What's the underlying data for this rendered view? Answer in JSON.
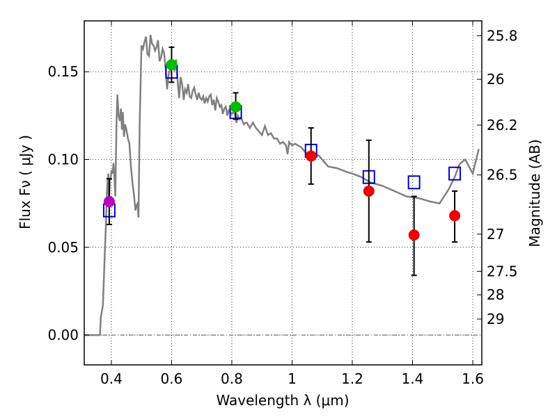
{
  "chart_data": {
    "type": "scatter",
    "xlabel": "Wavelength  λ (μm)",
    "ylabel": "Flux  Fν  ( μJy )",
    "ylabel_right": "Magnitude (AB)",
    "xlim": [
      0.31,
      1.63
    ],
    "ylim": [
      -0.017,
      0.179
    ],
    "x_ticks": [
      {
        "value": 0.4,
        "label": "0.4"
      },
      {
        "value": 0.6,
        "label": "0.6"
      },
      {
        "value": 0.8,
        "label": "0.8"
      },
      {
        "value": 1.0,
        "label": "1"
      },
      {
        "value": 1.2,
        "label": "1.2"
      },
      {
        "value": 1.4,
        "label": "1.4"
      },
      {
        "value": 1.6,
        "label": "1.6"
      }
    ],
    "y_ticks": [
      {
        "value": 0.0,
        "label": "0.00"
      },
      {
        "value": 0.05,
        "label": "0.05"
      },
      {
        "value": 0.1,
        "label": "0.10"
      },
      {
        "value": 0.15,
        "label": "0.15"
      }
    ],
    "mag_ticks": [
      {
        "flux": 0.1705,
        "label": "25.8"
      },
      {
        "flux": 0.1457,
        "label": "26"
      },
      {
        "flux": 0.1196,
        "label": "26.2"
      },
      {
        "flux": 0.0912,
        "label": "26.5"
      },
      {
        "flux": 0.0575,
        "label": "27"
      },
      {
        "flux": 0.0363,
        "label": "27.5"
      },
      {
        "flux": 0.0229,
        "label": "28"
      },
      {
        "flux": 0.0091,
        "label": "29"
      }
    ],
    "grid": true,
    "colors": {
      "model": "#808080",
      "model_points": "#0000cc",
      "errorbar": "#000000",
      "violet": "#bb00bb",
      "green": "#00bb00",
      "red": "#ee0000",
      "zero_line": "#555555"
    },
    "model_spectrum": {
      "x": [
        0.31,
        0.362,
        0.365,
        0.372,
        0.378,
        0.383,
        0.386,
        0.39,
        0.392,
        0.395,
        0.398,
        0.401,
        0.404,
        0.407,
        0.41,
        0.413,
        0.417,
        0.42,
        0.424,
        0.428,
        0.432,
        0.435,
        0.438,
        0.442,
        0.446,
        0.45,
        0.455,
        0.46,
        0.465,
        0.47,
        0.475,
        0.48,
        0.484,
        0.487,
        0.49,
        0.494,
        0.5,
        0.505,
        0.51,
        0.515,
        0.52,
        0.525,
        0.53,
        0.535,
        0.54,
        0.545,
        0.55,
        0.555,
        0.56,
        0.565,
        0.57,
        0.575,
        0.58,
        0.585,
        0.59,
        0.595,
        0.6,
        0.605,
        0.61,
        0.615,
        0.62,
        0.625,
        0.63,
        0.635,
        0.64,
        0.645,
        0.65,
        0.655,
        0.66,
        0.665,
        0.67,
        0.675,
        0.68,
        0.685,
        0.69,
        0.695,
        0.7,
        0.705,
        0.71,
        0.715,
        0.72,
        0.725,
        0.73,
        0.735,
        0.74,
        0.745,
        0.75,
        0.755,
        0.76,
        0.765,
        0.77,
        0.775,
        0.78,
        0.785,
        0.79,
        0.795,
        0.8,
        0.805,
        0.81,
        0.815,
        0.82,
        0.825,
        0.83,
        0.835,
        0.84,
        0.845,
        0.85,
        0.86,
        0.87,
        0.88,
        0.89,
        0.9,
        0.91,
        0.92,
        0.93,
        0.94,
        0.95,
        0.96,
        0.97,
        0.98,
        0.985,
        0.99,
        1.0,
        1.01,
        1.02,
        1.03,
        1.05,
        1.07,
        1.09,
        1.1,
        1.12,
        1.15,
        1.18,
        1.2,
        1.23,
        1.26,
        1.3,
        1.34,
        1.38,
        1.42,
        1.46,
        1.49,
        1.52,
        1.54,
        1.555,
        1.56,
        1.575,
        1.6,
        1.62
      ],
      "y": [
        0.0,
        0.0,
        0.01,
        0.017,
        0.045,
        0.068,
        0.085,
        0.092,
        0.075,
        0.088,
        0.09,
        0.094,
        0.092,
        0.098,
        0.09,
        0.079,
        0.12,
        0.137,
        0.125,
        0.122,
        0.129,
        0.117,
        0.127,
        0.113,
        0.12,
        0.117,
        0.112,
        0.109,
        0.096,
        0.087,
        0.08,
        0.071,
        0.074,
        0.075,
        0.067,
        0.12,
        0.165,
        0.163,
        0.167,
        0.17,
        0.16,
        0.159,
        0.171,
        0.166,
        0.165,
        0.162,
        0.164,
        0.168,
        0.156,
        0.158,
        0.163,
        0.161,
        0.152,
        0.14,
        0.148,
        0.152,
        0.155,
        0.153,
        0.151,
        0.157,
        0.145,
        0.135,
        0.147,
        0.143,
        0.134,
        0.14,
        0.138,
        0.143,
        0.136,
        0.135,
        0.139,
        0.141,
        0.137,
        0.134,
        0.138,
        0.135,
        0.134,
        0.136,
        0.132,
        0.135,
        0.133,
        0.136,
        0.137,
        0.131,
        0.134,
        0.128,
        0.135,
        0.133,
        0.13,
        0.131,
        0.126,
        0.129,
        0.13,
        0.125,
        0.128,
        0.127,
        0.126,
        0.127,
        0.126,
        0.121,
        0.125,
        0.123,
        0.124,
        0.122,
        0.12,
        0.121,
        0.121,
        0.118,
        0.121,
        0.118,
        0.116,
        0.114,
        0.119,
        0.114,
        0.115,
        0.112,
        0.112,
        0.109,
        0.11,
        0.108,
        0.103,
        0.11,
        0.108,
        0.109,
        0.108,
        0.107,
        0.103,
        0.104,
        0.102,
        0.1,
        0.096,
        0.095,
        0.093,
        0.092,
        0.09,
        0.087,
        0.085,
        0.082,
        0.079,
        0.078,
        0.076,
        0.075,
        0.083,
        0.09,
        0.097,
        0.098,
        0.1,
        0.092,
        0.106
      ]
    },
    "model_points": [
      {
        "x": 0.393,
        "y": 0.071
      },
      {
        "x": 0.6,
        "y": 0.15
      },
      {
        "x": 0.813,
        "y": 0.127
      },
      {
        "x": 1.063,
        "y": 0.105
      },
      {
        "x": 1.255,
        "y": 0.09
      },
      {
        "x": 1.405,
        "y": 0.087
      },
      {
        "x": 1.54,
        "y": 0.092
      }
    ],
    "observed": [
      {
        "x": 0.393,
        "y": 0.076,
        "ylo": 0.063,
        "yhi": 0.089,
        "color": "violet"
      },
      {
        "x": 0.6,
        "y": 0.154,
        "ylo": 0.144,
        "yhi": 0.164,
        "color": "green"
      },
      {
        "x": 0.813,
        "y": 0.13,
        "ylo": 0.123,
        "yhi": 0.138,
        "color": "green"
      },
      {
        "x": 1.063,
        "y": 0.102,
        "ylo": 0.086,
        "yhi": 0.118,
        "color": "red"
      },
      {
        "x": 1.255,
        "y": 0.082,
        "ylo": 0.053,
        "yhi": 0.111,
        "color": "red"
      },
      {
        "x": 1.405,
        "y": 0.057,
        "ylo": 0.034,
        "yhi": 0.079,
        "color": "red"
      },
      {
        "x": 1.54,
        "y": 0.068,
        "ylo": 0.053,
        "yhi": 0.082,
        "color": "red"
      }
    ]
  }
}
